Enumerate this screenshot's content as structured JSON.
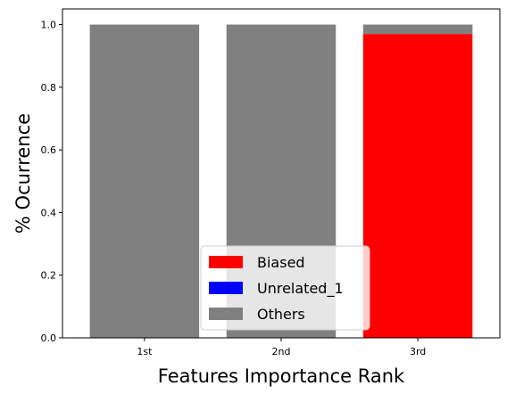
{
  "chart_data": {
    "type": "bar",
    "stacked": true,
    "categories": [
      "1st",
      "2nd",
      "3rd"
    ],
    "series": [
      {
        "name": "Biased",
        "color": "#ff0000",
        "values": [
          0.0,
          0.0,
          0.97
        ]
      },
      {
        "name": "Unrelated_1",
        "color": "#0000ff",
        "values": [
          0.0,
          0.0,
          0.0
        ]
      },
      {
        "name": "Others",
        "color": "#808080",
        "values": [
          1.0,
          1.0,
          0.03
        ]
      }
    ],
    "title": "",
    "xlabel": "Features Importance Rank",
    "ylabel": "% Ocurrence",
    "ylim": [
      0,
      1.05
    ],
    "yticks": [
      "0.0",
      "0.2",
      "0.4",
      "0.6",
      "0.8",
      "1.0"
    ],
    "ytick_values": [
      0.0,
      0.2,
      0.4,
      0.6,
      0.8,
      1.0
    ],
    "grid": false,
    "legend_position": "lower-center"
  }
}
